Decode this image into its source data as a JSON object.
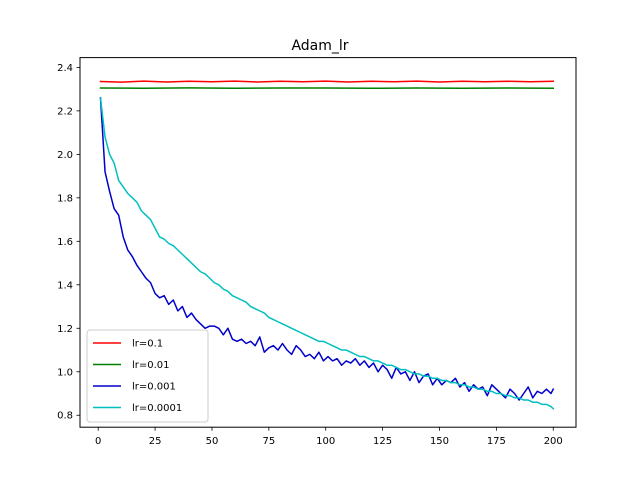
{
  "chart_data": {
    "type": "line",
    "title": "Adam_lr",
    "xlabel": "",
    "ylabel": "",
    "xlim": [
      -8,
      210
    ],
    "ylim": [
      0.745,
      2.445
    ],
    "x_ticks": [
      0,
      25,
      50,
      75,
      100,
      125,
      150,
      175,
      200
    ],
    "y_ticks": [
      0.8,
      1.0,
      1.2,
      1.4,
      1.6,
      1.8,
      2.0,
      2.2,
      2.4
    ],
    "grid": false,
    "legend_position": "lower-left",
    "x_range": [
      1,
      200
    ],
    "series": [
      {
        "name": "lr=0.1",
        "color": "#ff0000",
        "points": [
          [
            1,
            2.335
          ],
          [
            10,
            2.332
          ],
          [
            20,
            2.337
          ],
          [
            30,
            2.333
          ],
          [
            40,
            2.336
          ],
          [
            50,
            2.334
          ],
          [
            60,
            2.337
          ],
          [
            70,
            2.333
          ],
          [
            80,
            2.336
          ],
          [
            90,
            2.334
          ],
          [
            100,
            2.337
          ],
          [
            110,
            2.333
          ],
          [
            120,
            2.336
          ],
          [
            130,
            2.334
          ],
          [
            140,
            2.337
          ],
          [
            150,
            2.333
          ],
          [
            160,
            2.336
          ],
          [
            170,
            2.334
          ],
          [
            180,
            2.336
          ],
          [
            190,
            2.334
          ],
          [
            200,
            2.336
          ]
        ]
      },
      {
        "name": "lr=0.01",
        "color": "#008000",
        "points": [
          [
            1,
            2.305
          ],
          [
            20,
            2.304
          ],
          [
            40,
            2.306
          ],
          [
            60,
            2.304
          ],
          [
            80,
            2.305
          ],
          [
            100,
            2.305
          ],
          [
            120,
            2.304
          ],
          [
            140,
            2.305
          ],
          [
            160,
            2.304
          ],
          [
            180,
            2.305
          ],
          [
            200,
            2.304
          ]
        ]
      },
      {
        "name": "lr=0.001",
        "color": "#0000cc",
        "points": [
          [
            1,
            2.26
          ],
          [
            3,
            1.92
          ],
          [
            5,
            1.83
          ],
          [
            7,
            1.75
          ],
          [
            9,
            1.72
          ],
          [
            11,
            1.62
          ],
          [
            13,
            1.56
          ],
          [
            15,
            1.53
          ],
          [
            17,
            1.49
          ],
          [
            19,
            1.46
          ],
          [
            21,
            1.43
          ],
          [
            23,
            1.41
          ],
          [
            25,
            1.36
          ],
          [
            27,
            1.34
          ],
          [
            29,
            1.35
          ],
          [
            31,
            1.31
          ],
          [
            33,
            1.33
          ],
          [
            35,
            1.28
          ],
          [
            37,
            1.3
          ],
          [
            39,
            1.25
          ],
          [
            41,
            1.27
          ],
          [
            43,
            1.24
          ],
          [
            45,
            1.22
          ],
          [
            47,
            1.2
          ],
          [
            49,
            1.21
          ],
          [
            51,
            1.21
          ],
          [
            53,
            1.2
          ],
          [
            55,
            1.17
          ],
          [
            57,
            1.2
          ],
          [
            59,
            1.15
          ],
          [
            61,
            1.14
          ],
          [
            63,
            1.15
          ],
          [
            65,
            1.13
          ],
          [
            67,
            1.14
          ],
          [
            69,
            1.12
          ],
          [
            71,
            1.16
          ],
          [
            73,
            1.09
          ],
          [
            75,
            1.11
          ],
          [
            77,
            1.12
          ],
          [
            79,
            1.1
          ],
          [
            81,
            1.13
          ],
          [
            83,
            1.1
          ],
          [
            85,
            1.08
          ],
          [
            87,
            1.12
          ],
          [
            89,
            1.1
          ],
          [
            91,
            1.07
          ],
          [
            93,
            1.08
          ],
          [
            95,
            1.06
          ],
          [
            97,
            1.09
          ],
          [
            99,
            1.05
          ],
          [
            101,
            1.07
          ],
          [
            103,
            1.05
          ],
          [
            105,
            1.06
          ],
          [
            107,
            1.03
          ],
          [
            109,
            1.05
          ],
          [
            111,
            1.04
          ],
          [
            113,
            1.06
          ],
          [
            115,
            1.03
          ],
          [
            117,
            1.05
          ],
          [
            119,
            1.02
          ],
          [
            121,
            1.04
          ],
          [
            123,
            1.0
          ],
          [
            125,
            1.03
          ],
          [
            127,
            1.01
          ],
          [
            129,
            0.97
          ],
          [
            131,
            1.02
          ],
          [
            133,
            0.99
          ],
          [
            135,
            1.0
          ],
          [
            137,
            0.96
          ],
          [
            139,
            1.0
          ],
          [
            141,
            0.95
          ],
          [
            143,
            0.98
          ],
          [
            145,
            0.99
          ],
          [
            147,
            0.94
          ],
          [
            149,
            0.97
          ],
          [
            151,
            0.94
          ],
          [
            153,
            0.96
          ],
          [
            155,
            0.95
          ],
          [
            157,
            0.97
          ],
          [
            159,
            0.93
          ],
          [
            161,
            0.95
          ],
          [
            163,
            0.91
          ],
          [
            165,
            0.94
          ],
          [
            167,
            0.92
          ],
          [
            169,
            0.93
          ],
          [
            171,
            0.89
          ],
          [
            173,
            0.94
          ],
          [
            175,
            0.92
          ],
          [
            177,
            0.9
          ],
          [
            179,
            0.88
          ],
          [
            181,
            0.92
          ],
          [
            183,
            0.9
          ],
          [
            185,
            0.87
          ],
          [
            187,
            0.9
          ],
          [
            189,
            0.93
          ],
          [
            191,
            0.88
          ],
          [
            193,
            0.91
          ],
          [
            195,
            0.9
          ],
          [
            197,
            0.92
          ],
          [
            199,
            0.9
          ],
          [
            200,
            0.92
          ]
        ]
      },
      {
        "name": "lr=0.0001",
        "color": "#00bfbf",
        "points": [
          [
            1,
            2.26
          ],
          [
            3,
            2.08
          ],
          [
            5,
            2.0
          ],
          [
            7,
            1.96
          ],
          [
            9,
            1.88
          ],
          [
            11,
            1.85
          ],
          [
            13,
            1.82
          ],
          [
            15,
            1.8
          ],
          [
            17,
            1.78
          ],
          [
            19,
            1.74
          ],
          [
            21,
            1.72
          ],
          [
            23,
            1.7
          ],
          [
            25,
            1.66
          ],
          [
            27,
            1.62
          ],
          [
            29,
            1.61
          ],
          [
            31,
            1.59
          ],
          [
            33,
            1.58
          ],
          [
            35,
            1.56
          ],
          [
            37,
            1.54
          ],
          [
            39,
            1.52
          ],
          [
            41,
            1.5
          ],
          [
            43,
            1.48
          ],
          [
            45,
            1.46
          ],
          [
            47,
            1.45
          ],
          [
            49,
            1.43
          ],
          [
            51,
            1.41
          ],
          [
            53,
            1.4
          ],
          [
            55,
            1.38
          ],
          [
            57,
            1.37
          ],
          [
            59,
            1.35
          ],
          [
            61,
            1.34
          ],
          [
            63,
            1.33
          ],
          [
            65,
            1.32
          ],
          [
            67,
            1.3
          ],
          [
            69,
            1.29
          ],
          [
            71,
            1.28
          ],
          [
            73,
            1.27
          ],
          [
            75,
            1.25
          ],
          [
            77,
            1.24
          ],
          [
            79,
            1.23
          ],
          [
            81,
            1.22
          ],
          [
            83,
            1.21
          ],
          [
            85,
            1.2
          ],
          [
            87,
            1.19
          ],
          [
            89,
            1.18
          ],
          [
            91,
            1.17
          ],
          [
            93,
            1.16
          ],
          [
            95,
            1.15
          ],
          [
            97,
            1.14
          ],
          [
            99,
            1.14
          ],
          [
            101,
            1.13
          ],
          [
            103,
            1.12
          ],
          [
            105,
            1.11
          ],
          [
            107,
            1.1
          ],
          [
            109,
            1.1
          ],
          [
            111,
            1.09
          ],
          [
            113,
            1.08
          ],
          [
            115,
            1.07
          ],
          [
            117,
            1.07
          ],
          [
            119,
            1.06
          ],
          [
            121,
            1.05
          ],
          [
            123,
            1.05
          ],
          [
            125,
            1.04
          ],
          [
            127,
            1.03
          ],
          [
            129,
            1.03
          ],
          [
            131,
            1.02
          ],
          [
            133,
            1.01
          ],
          [
            135,
            1.01
          ],
          [
            137,
            1.0
          ],
          [
            139,
            0.99
          ],
          [
            141,
            0.99
          ],
          [
            143,
            0.98
          ],
          [
            145,
            0.98
          ],
          [
            147,
            0.97
          ],
          [
            149,
            0.97
          ],
          [
            151,
            0.96
          ],
          [
            153,
            0.96
          ],
          [
            155,
            0.95
          ],
          [
            157,
            0.95
          ],
          [
            159,
            0.94
          ],
          [
            161,
            0.94
          ],
          [
            163,
            0.93
          ],
          [
            165,
            0.93
          ],
          [
            167,
            0.92
          ],
          [
            169,
            0.92
          ],
          [
            171,
            0.91
          ],
          [
            173,
            0.91
          ],
          [
            175,
            0.9
          ],
          [
            177,
            0.9
          ],
          [
            179,
            0.89
          ],
          [
            181,
            0.89
          ],
          [
            183,
            0.88
          ],
          [
            185,
            0.88
          ],
          [
            187,
            0.87
          ],
          [
            189,
            0.87
          ],
          [
            191,
            0.86
          ],
          [
            193,
            0.86
          ],
          [
            195,
            0.85
          ],
          [
            197,
            0.85
          ],
          [
            199,
            0.84
          ],
          [
            200,
            0.83
          ]
        ]
      }
    ]
  }
}
